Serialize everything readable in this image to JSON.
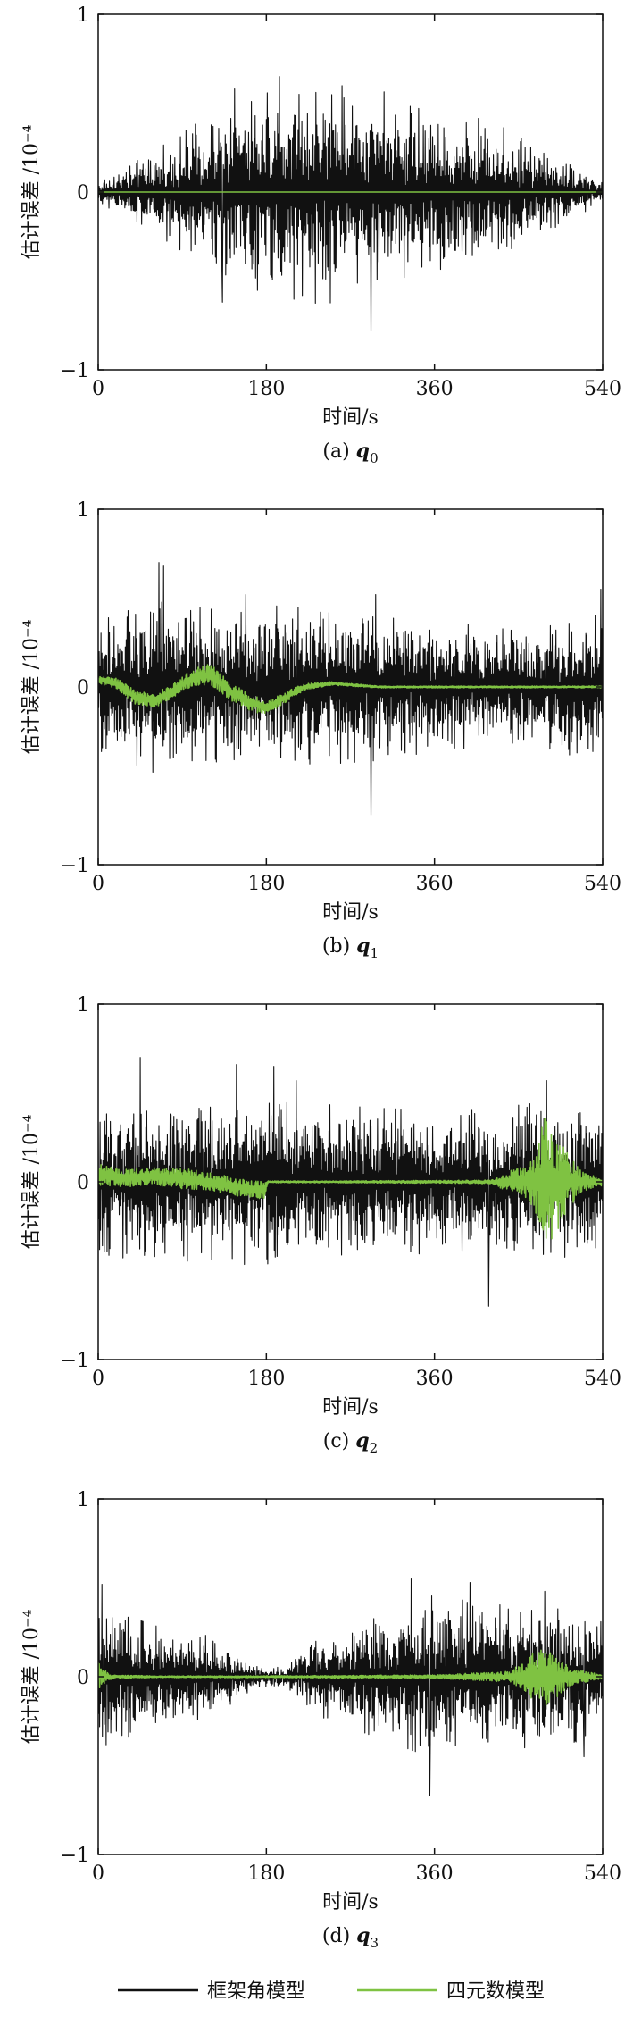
{
  "colors": {
    "gimbal": "#111111",
    "quaternion": "#7fc242",
    "axis": "#111111",
    "background": "#ffffff"
  },
  "legend": {
    "items": [
      {
        "label": "框架角模型",
        "color": "#111111"
      },
      {
        "label": "四元数模型",
        "color": "#7fc242"
      }
    ]
  },
  "chart_data": [
    {
      "type": "line",
      "panel": "a",
      "caption": {
        "prefix": "(a)",
        "var": "q",
        "sub": "0"
      },
      "xlabel": "时间/s",
      "ylabel": "估计误差 /10⁻⁴",
      "xlim": [
        0,
        540
      ],
      "ylim": [
        -1,
        1
      ],
      "xticks": [
        "0",
        "180",
        "360",
        "540"
      ],
      "yticks": [
        "1",
        "0",
        "−1"
      ],
      "grid": false,
      "legend_position": "bottom",
      "series": [
        {
          "name": "框架角模型",
          "color": "#111111",
          "pattern": "noise",
          "envelope_x": [
            0,
            60,
            120,
            180,
            240,
            300,
            360,
            420,
            480,
            540
          ],
          "envelope_amp": [
            0.05,
            0.2,
            0.38,
            0.5,
            0.55,
            0.5,
            0.4,
            0.35,
            0.2,
            0.05
          ],
          "peaks": [
            [
              133,
              -0.62
            ],
            [
              146,
              0.58
            ],
            [
              194,
              0.65
            ],
            [
              215,
              0.55
            ],
            [
              292,
              -0.78
            ],
            [
              343,
              0.47
            ]
          ]
        },
        {
          "name": "四元数模型",
          "color": "#7fc242",
          "pattern": "flat",
          "value": 0.0
        }
      ]
    },
    {
      "type": "line",
      "panel": "b",
      "caption": {
        "prefix": "(b)",
        "var": "q",
        "sub": "1"
      },
      "xlabel": "时间/s",
      "ylabel": "估计误差 /10⁻⁴",
      "xlim": [
        0,
        540
      ],
      "ylim": [
        -1,
        1
      ],
      "xticks": [
        "0",
        "180",
        "360",
        "540"
      ],
      "yticks": [
        "1",
        "0",
        "−1"
      ],
      "grid": false,
      "legend_position": "bottom",
      "series": [
        {
          "name": "框架角模型",
          "color": "#111111",
          "pattern": "noise",
          "envelope_x": [
            0,
            60,
            120,
            180,
            240,
            300,
            360,
            420,
            480,
            540
          ],
          "envelope_amp": [
            0.32,
            0.42,
            0.38,
            0.4,
            0.38,
            0.36,
            0.32,
            0.3,
            0.3,
            0.38
          ],
          "peaks": [
            [
              65,
              0.7
            ],
            [
              70,
              0.68
            ],
            [
              158,
              0.52
            ],
            [
              292,
              -0.72
            ],
            [
              297,
              0.52
            ],
            [
              538,
              0.55
            ]
          ]
        },
        {
          "name": "四元数模型",
          "color": "#7fc242",
          "pattern": "wave",
          "x": [
            0,
            20,
            40,
            60,
            80,
            100,
            120,
            140,
            160,
            180,
            200,
            220,
            250,
            300,
            540
          ],
          "y": [
            0.04,
            0.02,
            -0.06,
            -0.08,
            -0.02,
            0.05,
            0.07,
            -0.02,
            -0.08,
            -0.12,
            -0.06,
            0.0,
            0.02,
            0.0,
            0.0
          ],
          "noise": [
            0.02,
            0.03,
            0.04,
            0.04,
            0.04,
            0.05,
            0.06,
            0.05,
            0.05,
            0.04,
            0.03,
            0.02,
            0.01,
            0.005,
            0.005
          ]
        }
      ]
    },
    {
      "type": "line",
      "panel": "c",
      "caption": {
        "prefix": "(c)",
        "var": "q",
        "sub": "2"
      },
      "xlabel": "时间/s",
      "ylabel": "估计误差 /10⁻⁴",
      "xlim": [
        0,
        540
      ],
      "ylim": [
        -1,
        1
      ],
      "xticks": [
        "0",
        "180",
        "360",
        "540"
      ],
      "yticks": [
        "1",
        "0",
        "−1"
      ],
      "grid": false,
      "legend_position": "bottom",
      "series": [
        {
          "name": "框架角模型",
          "color": "#111111",
          "pattern": "noise",
          "envelope_x": [
            0,
            60,
            120,
            180,
            240,
            300,
            360,
            420,
            480,
            540
          ],
          "envelope_amp": [
            0.35,
            0.4,
            0.38,
            0.42,
            0.38,
            0.36,
            0.35,
            0.35,
            0.4,
            0.38
          ],
          "peaks": [
            [
              45,
              0.7
            ],
            [
              148,
              0.66
            ],
            [
              188,
              0.65
            ],
            [
              212,
              0.57
            ],
            [
              418,
              -0.7
            ],
            [
              480,
              0.57
            ]
          ]
        },
        {
          "name": "四元数模型",
          "color": "#7fc242",
          "pattern": "burst",
          "x": [
            0,
            30,
            60,
            90,
            120,
            150,
            178,
            182,
            250,
            420,
            440,
            460,
            470,
            478,
            490,
            505,
            520,
            540
          ],
          "y": [
            0.04,
            0.02,
            0.03,
            0.02,
            0.0,
            -0.03,
            -0.05,
            0.0,
            0.0,
            0.0,
            0.0,
            0.0,
            0.0,
            0.0,
            0.0,
            0.0,
            0.0,
            0.0
          ],
          "noise": [
            0.06,
            0.05,
            0.05,
            0.06,
            0.05,
            0.05,
            0.05,
            0.005,
            0.005,
            0.01,
            0.06,
            0.1,
            0.2,
            0.38,
            0.3,
            0.14,
            0.05,
            0.02
          ]
        }
      ]
    },
    {
      "type": "line",
      "panel": "d",
      "caption": {
        "prefix": "(d)",
        "var": "q",
        "sub": "3"
      },
      "xlabel": "时间/s",
      "ylabel": "估计误差 /10⁻⁴",
      "xlim": [
        0,
        540
      ],
      "ylim": [
        -1,
        1
      ],
      "xticks": [
        "0",
        "180",
        "360",
        "540"
      ],
      "yticks": [
        "1",
        "0",
        "−1"
      ],
      "grid": false,
      "legend_position": "bottom",
      "series": [
        {
          "name": "框架角模型",
          "color": "#111111",
          "pattern": "noise",
          "envelope_x": [
            0,
            30,
            60,
            120,
            170,
            200,
            240,
            300,
            360,
            420,
            480,
            540
          ],
          "envelope_amp": [
            0.35,
            0.3,
            0.25,
            0.2,
            0.05,
            0.05,
            0.2,
            0.3,
            0.4,
            0.36,
            0.34,
            0.3
          ],
          "peaks": [
            [
              4,
              0.52
            ],
            [
              355,
              -0.67
            ],
            [
              335,
              0.55
            ],
            [
              398,
              0.53
            ],
            [
              478,
              0.48
            ],
            [
              520,
              -0.45
            ]
          ]
        },
        {
          "name": "四元数模型",
          "color": "#7fc242",
          "pattern": "burst",
          "x": [
            0,
            6,
            15,
            60,
            180,
            360,
            440,
            460,
            475,
            490,
            505,
            540
          ],
          "y": [
            0.02,
            0.0,
            0.0,
            0.0,
            0.0,
            0.0,
            0.0,
            0.0,
            0.0,
            0.0,
            0.0,
            0.0
          ],
          "noise": [
            0.1,
            0.04,
            0.01,
            0.005,
            0.005,
            0.01,
            0.03,
            0.1,
            0.2,
            0.12,
            0.05,
            0.01
          ]
        }
      ]
    }
  ]
}
